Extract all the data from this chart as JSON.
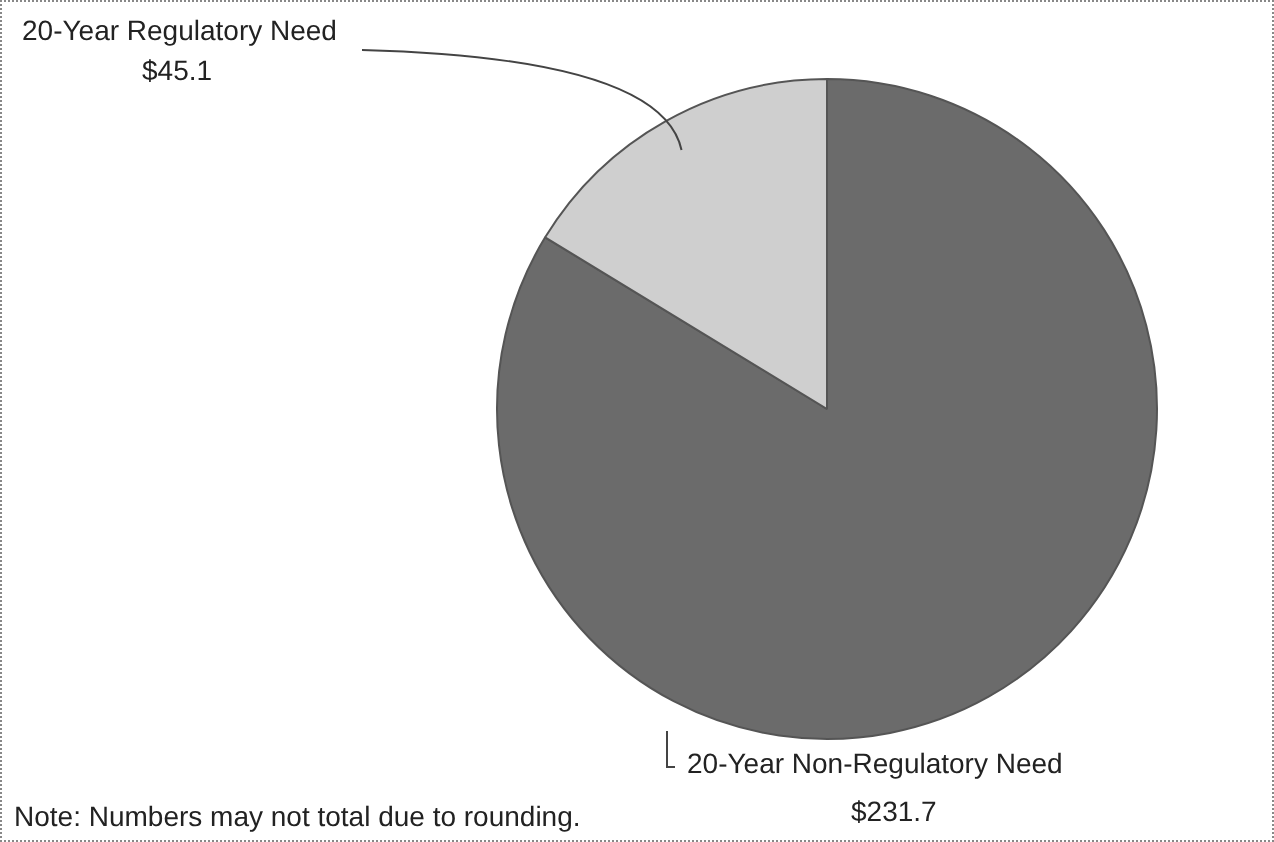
{
  "chart_data": {
    "type": "pie",
    "categories": [
      "20-Year Non-Regulatory Need",
      "20-Year Regulatory Need"
    ],
    "values": [
      231.7,
      45.1
    ],
    "colors": [
      "#6b6b6b",
      "#cfcfcf"
    ],
    "value_labels": [
      "$231.7",
      "$45.1"
    ],
    "legend": false,
    "annotations": [
      "Note: Numbers may not total due to rounding."
    ]
  }
}
